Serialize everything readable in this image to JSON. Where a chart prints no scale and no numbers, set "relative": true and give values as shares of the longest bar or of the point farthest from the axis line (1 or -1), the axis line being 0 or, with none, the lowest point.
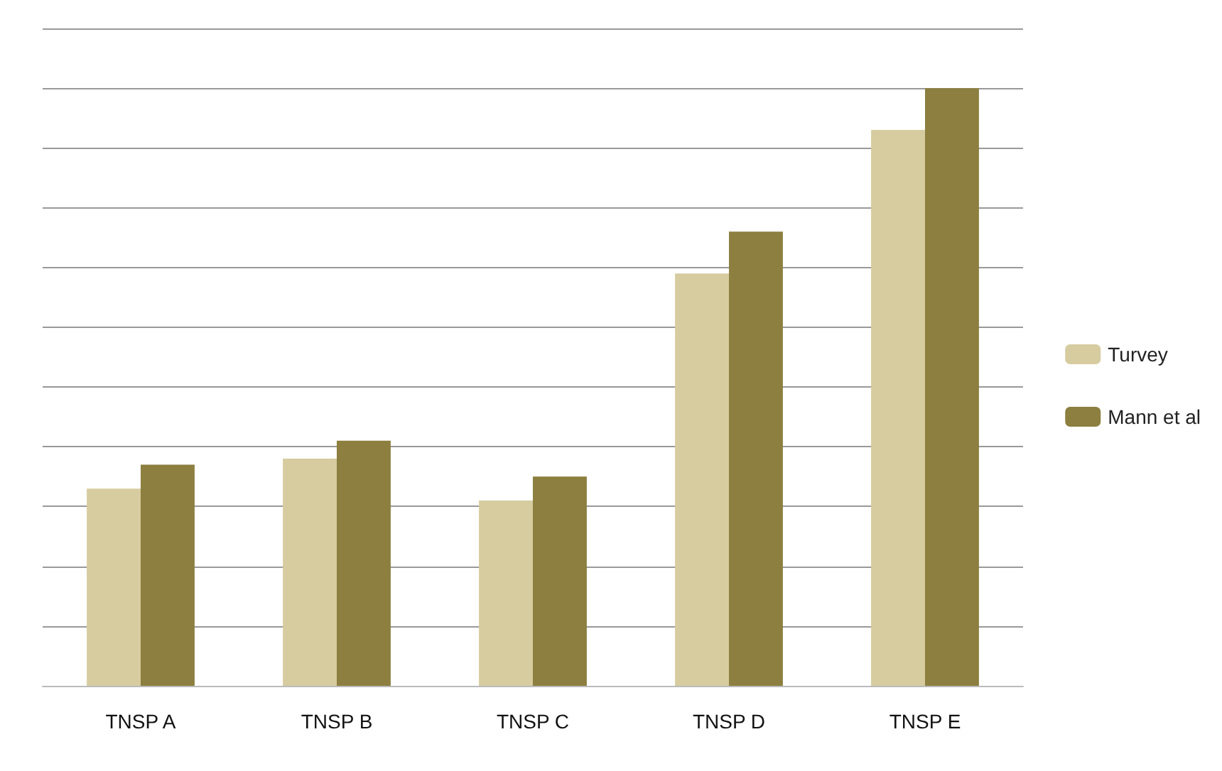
{
  "chart_data": {
    "type": "bar",
    "relative": true,
    "categories": [
      "TNSP A",
      "TNSP B",
      "TNSP C",
      "TNSP D",
      "TNSP E"
    ],
    "series": [
      {
        "name": "Turvey",
        "color": "#d6cca0",
        "values": [
          0.33,
          0.38,
          0.31,
          0.69,
          0.93
        ]
      },
      {
        "name": "Mann et al",
        "color": "#8c7f3f",
        "values": [
          0.37,
          0.41,
          0.35,
          0.76,
          1
        ]
      }
    ],
    "grid": true,
    "legend": "right"
  }
}
